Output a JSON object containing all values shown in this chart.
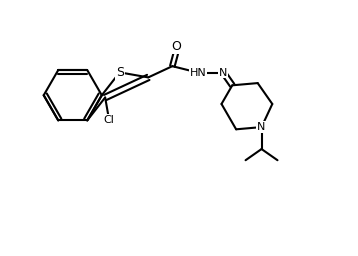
{
  "background_color": "#ffffff",
  "line_color": "#000000",
  "line_width": 1.5,
  "font_size": 8,
  "figsize": [
    3.58,
    2.56
  ],
  "dpi": 100,
  "xlim": [
    0,
    10
  ],
  "ylim": [
    0,
    7.15
  ]
}
